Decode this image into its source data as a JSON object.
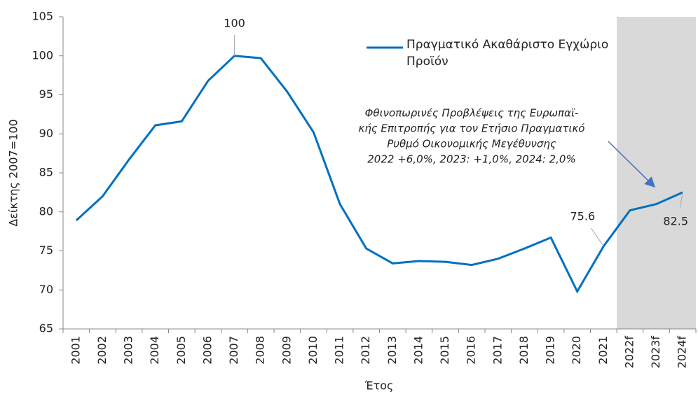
{
  "chart_data": {
    "type": "line",
    "ylabel": "Δείκτης 2007=100",
    "xlabel": "Έτος",
    "categories": [
      "2001",
      "2002",
      "2003",
      "2004",
      "2005",
      "2006",
      "2007",
      "2008",
      "2009",
      "2010",
      "2011",
      "2012",
      "2013",
      "2014",
      "2015",
      "2016",
      "2017",
      "2018",
      "2019",
      "2020",
      "2021",
      "2022f",
      "2023f",
      "2024f"
    ],
    "series": [
      {
        "name": "Πραγματικό Ακαθάριστο Εγχώριο Προϊόν",
        "color": "#0070c0",
        "values": [
          78.9,
          82,
          86.7,
          91.1,
          91.6,
          96.8,
          100,
          99.7,
          95.4,
          90.2,
          81,
          75.3,
          73.4,
          73.7,
          73.6,
          73.2,
          74,
          75.3,
          76.7,
          69.8,
          75.6,
          80.2,
          81,
          82.5
        ]
      }
    ],
    "labeled_points": [
      6,
      20,
      23
    ],
    "shade_start": 21,
    "shade_color": "#d9d9d9",
    "ylim": [
      65,
      105
    ],
    "yticks": [
      65,
      70,
      75,
      80,
      85,
      90,
      95,
      100,
      105
    ],
    "annotation_lines": [
      "Φθινοπωρινές Προβλέψεις της Ευρωπαϊ-",
      "κής Επιτροπής για τον Ετήσιο Πραγματικό",
      "Ρυθμό Οικονομικής Μεγέθυνσης",
      "2022 +6,0%, 2023: +1,0%, 2024: 2,0%"
    ]
  }
}
